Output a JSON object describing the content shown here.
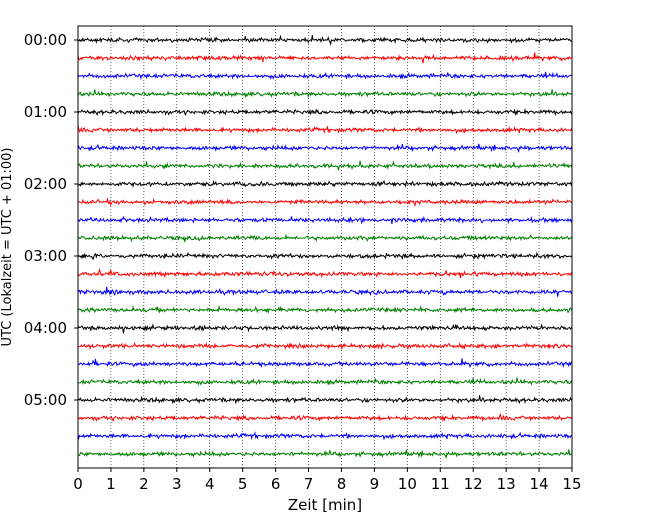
{
  "chart_data": {
    "type": "line",
    "title": "",
    "xlabel": "Zeit  [min]",
    "ylabel": "UTC (Lokalzeit = UTC + 01:00)",
    "xlim": [
      0,
      15
    ],
    "x_ticks": [
      "0",
      "1",
      "2",
      "3",
      "4",
      "5",
      "6",
      "7",
      "8",
      "9",
      "10",
      "11",
      "12",
      "13",
      "14",
      "15"
    ],
    "y_tick_labels": [
      "00:00",
      "01:00",
      "02:00",
      "03:00",
      "04:00",
      "05:00"
    ],
    "grid": "vertical dotted at each minute",
    "series_colors": [
      "#000000",
      "#ff0000",
      "#0000ff",
      "#008000"
    ],
    "trace_count": 24,
    "trace_interval": "15 min",
    "trace_start_times": [
      "00:00",
      "00:15",
      "00:30",
      "00:45",
      "01:00",
      "01:15",
      "01:30",
      "01:45",
      "02:00",
      "02:15",
      "02:30",
      "02:45",
      "03:00",
      "03:15",
      "03:30",
      "03:45",
      "04:00",
      "04:15",
      "04:30",
      "04:45",
      "05:00",
      "05:15",
      "05:30",
      "05:45"
    ]
  }
}
